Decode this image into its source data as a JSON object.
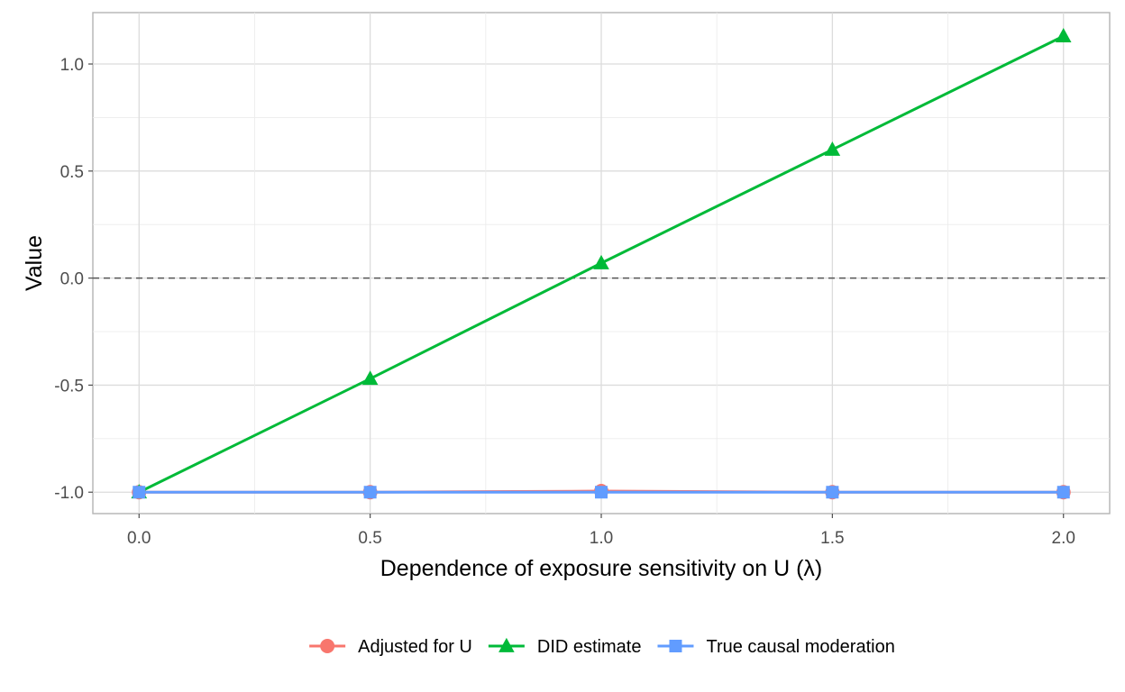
{
  "chart_data": {
    "type": "line",
    "title": "",
    "xlabel": "Dependence of exposure sensitivity on U  (λ)",
    "ylabel": "Value",
    "x": [
      0.0,
      0.5,
      1.0,
      1.5,
      2.0
    ],
    "x_ticks": [
      "0.0",
      "0.5",
      "1.0",
      "1.5",
      "2.0"
    ],
    "y_ticks": [
      "-1.0",
      "-0.5",
      "0.0",
      "0.5",
      "1.0"
    ],
    "y_tick_values": [
      -1.0,
      -0.5,
      0.0,
      0.5,
      1.0
    ],
    "xlim": [
      -0.1,
      2.1
    ],
    "ylim": [
      -1.1,
      1.24
    ],
    "grid": true,
    "reference_line": {
      "y": 0.0,
      "style": "dashed"
    },
    "legend_position": "bottom",
    "series": [
      {
        "name": "Adjusted for U",
        "values": [
          -1.0,
          -1.0,
          -0.995,
          -1.0,
          -1.0
        ],
        "color": "#F8766D",
        "marker": "circle"
      },
      {
        "name": "DID estimate",
        "values": [
          -1.0,
          -0.47,
          0.07,
          0.6,
          1.13
        ],
        "color": "#00BA38",
        "marker": "triangle"
      },
      {
        "name": "True causal moderation",
        "values": [
          -1.0,
          -1.0,
          -1.0,
          -1.0,
          -1.0
        ],
        "color": "#619CFF",
        "marker": "square"
      }
    ]
  }
}
